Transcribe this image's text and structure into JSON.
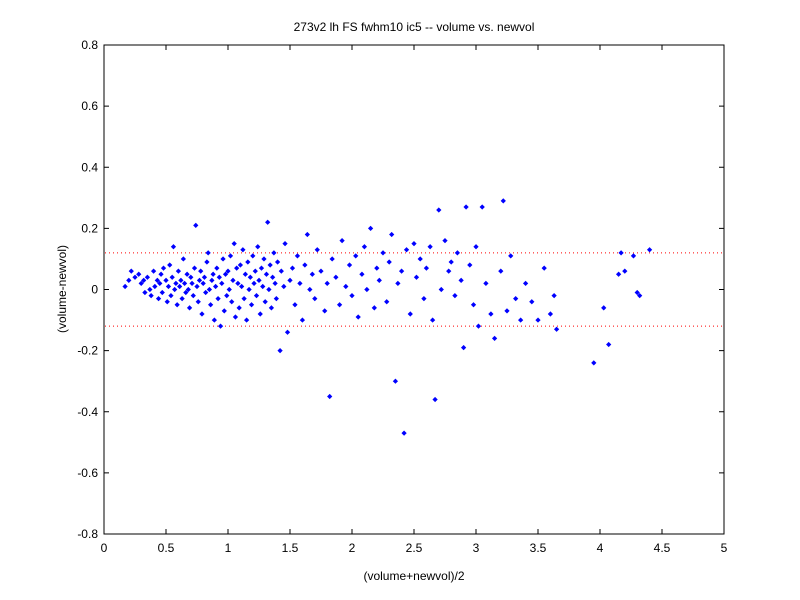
{
  "chart_data": {
    "type": "scatter",
    "title": "273v2 lh FS fwhm10 ic5 -- volume vs. newvol",
    "xlabel": "(volume+newvol)/2",
    "ylabel": "(volume-newvol)",
    "xlim": [
      0,
      5
    ],
    "ylim": [
      -0.8,
      0.8
    ],
    "xticks": [
      "0",
      "0.5",
      "1",
      "1.5",
      "2",
      "2.5",
      "3",
      "3.5",
      "4",
      "4.5",
      "5"
    ],
    "yticks": [
      "0.8",
      "0.6",
      "0.4",
      "0.2",
      "0",
      "-0.2",
      "-0.4",
      "-0.6",
      "-0.8"
    ],
    "grid": false,
    "reference_lines": [
      {
        "y": 0.12,
        "style": "dotted",
        "color": "#ff0000"
      },
      {
        "y": -0.12,
        "style": "dotted",
        "color": "#ff0000"
      }
    ],
    "marker_color": "#0000ff",
    "points": [
      [
        0.17,
        0.01
      ],
      [
        0.2,
        0.03
      ],
      [
        0.22,
        0.06
      ],
      [
        0.25,
        0.04
      ],
      [
        0.28,
        0.05
      ],
      [
        0.3,
        0.02
      ],
      [
        0.32,
        0.03
      ],
      [
        0.33,
        -0.01
      ],
      [
        0.35,
        0.04
      ],
      [
        0.37,
        0.0
      ],
      [
        0.38,
        -0.02
      ],
      [
        0.4,
        0.06
      ],
      [
        0.41,
        0.01
      ],
      [
        0.43,
        0.03
      ],
      [
        0.44,
        -0.03
      ],
      [
        0.45,
        0.02
      ],
      [
        0.46,
        0.05
      ],
      [
        0.47,
        -0.01
      ],
      [
        0.48,
        0.07
      ],
      [
        0.5,
        0.03
      ],
      [
        0.51,
        -0.04
      ],
      [
        0.52,
        0.01
      ],
      [
        0.53,
        0.08
      ],
      [
        0.54,
        -0.02
      ],
      [
        0.55,
        0.04
      ],
      [
        0.56,
        0.14
      ],
      [
        0.57,
        0.0
      ],
      [
        0.58,
        0.02
      ],
      [
        0.59,
        -0.05
      ],
      [
        0.6,
        0.06
      ],
      [
        0.61,
        0.01
      ],
      [
        0.62,
        0.03
      ],
      [
        0.63,
        -0.03
      ],
      [
        0.64,
        0.1
      ],
      [
        0.65,
        0.02
      ],
      [
        0.66,
        -0.01
      ],
      [
        0.67,
        0.05
      ],
      [
        0.68,
        0.0
      ],
      [
        0.69,
        -0.06
      ],
      [
        0.7,
        0.04
      ],
      [
        0.71,
        0.02
      ],
      [
        0.72,
        -0.02
      ],
      [
        0.73,
        0.07
      ],
      [
        0.74,
        0.21
      ],
      [
        0.75,
        0.01
      ],
      [
        0.76,
        -0.04
      ],
      [
        0.77,
        0.03
      ],
      [
        0.78,
        0.06
      ],
      [
        0.79,
        -0.08
      ],
      [
        0.8,
        0.02
      ],
      [
        0.81,
        0.04
      ],
      [
        0.82,
        -0.01
      ],
      [
        0.83,
        0.09
      ],
      [
        0.84,
        0.12
      ],
      [
        0.85,
        0.0
      ],
      [
        0.86,
        -0.05
      ],
      [
        0.87,
        0.03
      ],
      [
        0.88,
        0.05
      ],
      [
        0.89,
        -0.1
      ],
      [
        0.9,
        0.01
      ],
      [
        0.91,
        0.07
      ],
      [
        0.92,
        -0.03
      ],
      [
        0.93,
        0.04
      ],
      [
        0.94,
        -0.12
      ],
      [
        0.95,
        0.02
      ],
      [
        0.96,
        0.1
      ],
      [
        0.97,
        -0.07
      ],
      [
        0.98,
        0.05
      ],
      [
        0.99,
        -0.02
      ],
      [
        1.0,
        0.06
      ],
      [
        1.01,
        0.0
      ],
      [
        1.02,
        0.11
      ],
      [
        1.03,
        -0.04
      ],
      [
        1.04,
        0.03
      ],
      [
        1.05,
        0.15
      ],
      [
        1.06,
        -0.09
      ],
      [
        1.07,
        0.07
      ],
      [
        1.08,
        0.02
      ],
      [
        1.09,
        -0.06
      ],
      [
        1.1,
        0.08
      ],
      [
        1.11,
        0.01
      ],
      [
        1.12,
        0.13
      ],
      [
        1.13,
        -0.03
      ],
      [
        1.14,
        0.05
      ],
      [
        1.15,
        -0.1
      ],
      [
        1.16,
        0.09
      ],
      [
        1.17,
        0.0
      ],
      [
        1.18,
        0.04
      ],
      [
        1.19,
        -0.05
      ],
      [
        1.2,
        0.11
      ],
      [
        1.21,
        0.02
      ],
      [
        1.22,
        0.06
      ],
      [
        1.23,
        -0.02
      ],
      [
        1.24,
        0.14
      ],
      [
        1.25,
        0.03
      ],
      [
        1.26,
        -0.08
      ],
      [
        1.27,
        0.07
      ],
      [
        1.28,
        0.01
      ],
      [
        1.29,
        0.1
      ],
      [
        1.3,
        -0.04
      ],
      [
        1.31,
        0.05
      ],
      [
        1.32,
        0.22
      ],
      [
        1.33,
        0.0
      ],
      [
        1.34,
        0.08
      ],
      [
        1.35,
        -0.06
      ],
      [
        1.36,
        0.04
      ],
      [
        1.37,
        0.12
      ],
      [
        1.38,
        0.02
      ],
      [
        1.39,
        -0.03
      ],
      [
        1.4,
        0.09
      ],
      [
        1.42,
        -0.2
      ],
      [
        1.43,
        0.06
      ],
      [
        1.45,
        0.01
      ],
      [
        1.46,
        0.15
      ],
      [
        1.48,
        -0.14
      ],
      [
        1.5,
        0.03
      ],
      [
        1.52,
        0.07
      ],
      [
        1.54,
        -0.05
      ],
      [
        1.56,
        0.11
      ],
      [
        1.58,
        0.02
      ],
      [
        1.6,
        -0.1
      ],
      [
        1.62,
        0.08
      ],
      [
        1.64,
        0.18
      ],
      [
        1.66,
        0.0
      ],
      [
        1.68,
        0.05
      ],
      [
        1.7,
        -0.03
      ],
      [
        1.72,
        0.13
      ],
      [
        1.75,
        0.06
      ],
      [
        1.78,
        -0.07
      ],
      [
        1.8,
        0.02
      ],
      [
        1.82,
        -0.35
      ],
      [
        1.84,
        0.1
      ],
      [
        1.87,
        0.04
      ],
      [
        1.9,
        -0.05
      ],
      [
        1.92,
        0.16
      ],
      [
        1.95,
        0.01
      ],
      [
        1.98,
        0.08
      ],
      [
        2.0,
        -0.02
      ],
      [
        2.03,
        0.11
      ],
      [
        2.05,
        -0.09
      ],
      [
        2.08,
        0.05
      ],
      [
        2.1,
        0.14
      ],
      [
        2.12,
        0.0
      ],
      [
        2.15,
        0.2
      ],
      [
        2.18,
        -0.06
      ],
      [
        2.2,
        0.07
      ],
      [
        2.22,
        0.03
      ],
      [
        2.25,
        0.12
      ],
      [
        2.28,
        -0.04
      ],
      [
        2.3,
        0.09
      ],
      [
        2.32,
        0.18
      ],
      [
        2.35,
        -0.3
      ],
      [
        2.37,
        0.02
      ],
      [
        2.4,
        0.06
      ],
      [
        2.42,
        -0.47
      ],
      [
        2.44,
        0.13
      ],
      [
        2.47,
        -0.08
      ],
      [
        2.5,
        0.15
      ],
      [
        2.52,
        0.04
      ],
      [
        2.55,
        0.1
      ],
      [
        2.58,
        -0.03
      ],
      [
        2.6,
        0.07
      ],
      [
        2.63,
        0.14
      ],
      [
        2.65,
        -0.1
      ],
      [
        2.67,
        -0.36
      ],
      [
        2.7,
        0.26
      ],
      [
        2.72,
        0.0
      ],
      [
        2.75,
        0.16
      ],
      [
        2.78,
        0.06
      ],
      [
        2.8,
        0.09
      ],
      [
        2.83,
        -0.02
      ],
      [
        2.85,
        0.12
      ],
      [
        2.88,
        0.03
      ],
      [
        2.9,
        -0.19
      ],
      [
        2.92,
        0.27
      ],
      [
        2.95,
        0.08
      ],
      [
        2.98,
        -0.05
      ],
      [
        3.0,
        0.14
      ],
      [
        3.02,
        -0.12
      ],
      [
        3.05,
        0.27
      ],
      [
        3.08,
        0.02
      ],
      [
        3.12,
        -0.08
      ],
      [
        3.15,
        -0.16
      ],
      [
        3.2,
        0.06
      ],
      [
        3.22,
        0.29
      ],
      [
        3.25,
        -0.07
      ],
      [
        3.28,
        0.11
      ],
      [
        3.32,
        -0.03
      ],
      [
        3.36,
        -0.1
      ],
      [
        3.4,
        0.02
      ],
      [
        3.45,
        -0.04
      ],
      [
        3.5,
        -0.1
      ],
      [
        3.55,
        0.07
      ],
      [
        3.6,
        -0.08
      ],
      [
        3.63,
        -0.02
      ],
      [
        3.65,
        -0.13
      ],
      [
        3.95,
        -0.24
      ],
      [
        4.03,
        -0.06
      ],
      [
        4.07,
        -0.18
      ],
      [
        4.15,
        0.05
      ],
      [
        4.17,
        0.12
      ],
      [
        4.2,
        0.06
      ],
      [
        4.27,
        0.11
      ],
      [
        4.3,
        -0.01
      ],
      [
        4.32,
        -0.02
      ],
      [
        4.4,
        0.13
      ]
    ]
  }
}
